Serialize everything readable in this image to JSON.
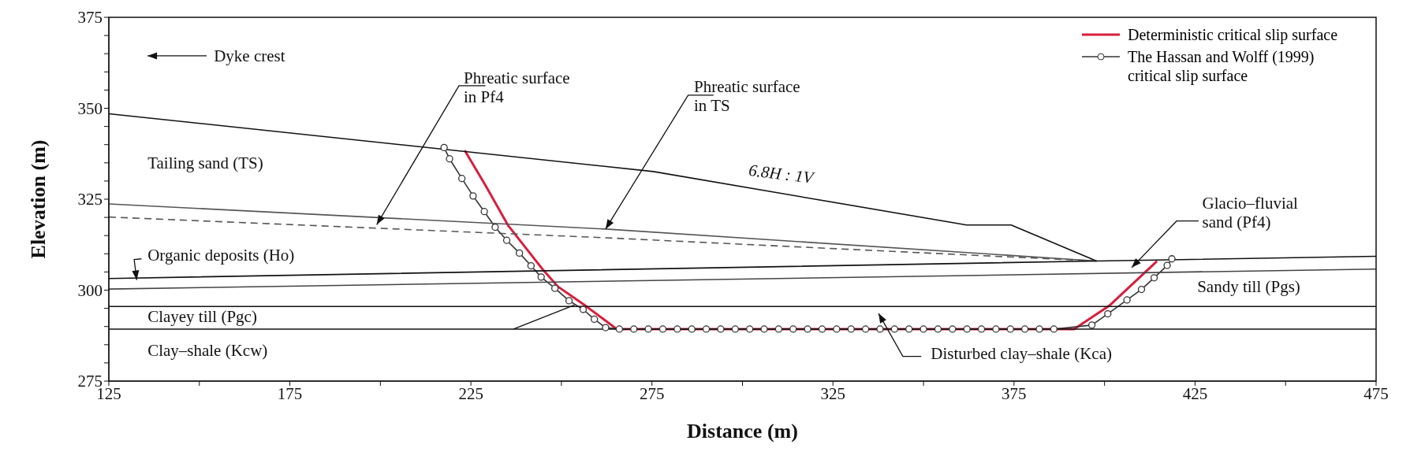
{
  "chart_data": {
    "type": "line",
    "xlabel": "Distance (m)",
    "ylabel": "Elevation (m)",
    "xlim": [
      125,
      475
    ],
    "xticks": [
      125,
      {
        "value": 150,
        "label": null
      },
      175,
      {
        "value": 200,
        "label": null
      },
      225,
      {
        "value": 250,
        "label": null
      },
      275,
      {
        "value": 300,
        "label": null
      },
      325,
      {
        "value": 350,
        "label": null
      },
      375,
      {
        "value": 400,
        "label": null
      },
      425,
      {
        "value": 450,
        "label": null
      },
      475
    ],
    "ylim": [
      275,
      375
    ],
    "yticks": [
      275,
      {
        "value": 280,
        "label": null
      },
      {
        "value": 285,
        "label": null
      },
      {
        "value": 290,
        "label": null
      },
      {
        "value": 295,
        "label": null
      },
      300,
      {
        "value": 305,
        "label": null
      },
      {
        "value": 310,
        "label": null
      },
      {
        "value": 315,
        "label": null
      },
      {
        "value": 320,
        "label": null
      },
      325,
      {
        "value": 330,
        "label": null
      },
      {
        "value": 335,
        "label": null
      },
      {
        "value": 340,
        "label": null
      },
      {
        "value": 345,
        "label": null
      },
      350,
      {
        "value": 355,
        "label": null
      },
      {
        "value": 360,
        "label": null
      },
      {
        "value": 365,
        "label": null
      },
      {
        "value": 370,
        "label": null
      },
      375
    ],
    "grid": false,
    "legend": "top right",
    "series": [
      {
        "name": "Deterministic critical slip surface",
        "color": "#d81e3c",
        "line_style": "solid",
        "marker": "none",
        "x": [
          223.3,
          229.1,
          235.2,
          245,
          249,
          256.8,
          265.3,
          391.6,
          401.3,
          414.5
        ],
        "values": [
          338.4,
          328.7,
          317.9,
          305.5,
          301,
          295.6,
          289.3,
          289.3,
          295.7,
          308
        ]
      },
      {
        "name": "The Hassan and Wolff (1999) critical slip surface",
        "color": "#333333",
        "line_style": "solid",
        "marker": "circle",
        "x": [
          217.6,
          219.1,
          222.5,
          225.6,
          228.7,
          231.7,
          234.9,
          238.4,
          241.6,
          244.4,
          248.2,
          252.1,
          256,
          259.1,
          262.2,
          266,
          270,
          274,
          278,
          282,
          286,
          290,
          294,
          298,
          302,
          306,
          310,
          314,
          318,
          322,
          326,
          330,
          334,
          338,
          342,
          346,
          350,
          354,
          358,
          362,
          366,
          370,
          374,
          378,
          382,
          386,
          396.5,
          400.9,
          406.2,
          410.2,
          413.7,
          417.3,
          418.6
        ],
        "values": [
          339.2,
          336.1,
          330.7,
          325.9,
          321.6,
          317.3,
          313.7,
          310.2,
          306.7,
          303.6,
          300.5,
          297.1,
          294.7,
          292,
          289.7,
          289.3,
          289.3,
          289.3,
          289.3,
          289.3,
          289.3,
          289.3,
          289.3,
          289.3,
          289.3,
          289.3,
          289.3,
          289.3,
          289.3,
          289.3,
          289.3,
          289.3,
          289.3,
          289.3,
          289.3,
          289.3,
          289.3,
          289.3,
          289.3,
          289.3,
          289.3,
          289.3,
          289.3,
          289.3,
          289.3,
          289.3,
          290.4,
          293.5,
          297.3,
          300.2,
          303.4,
          306.8,
          308.6
        ]
      },
      {
        "color": "#111111",
        "line_style": "solid",
        "marker": "none",
        "x": [
          125,
          275.4,
          361.9,
          374.2,
          397.8
        ],
        "values": [
          348.5,
          332.6,
          317.9,
          317.9,
          308
        ]
      },
      {
        "color": "#555555",
        "line_style": "solid",
        "marker": "none",
        "x": [
          125,
          262.2,
          397.8
        ],
        "values": [
          323.7,
          316.8,
          308
        ]
      },
      {
        "color": "#555555",
        "line_style": "dashed",
        "marker": "none",
        "x": [
          125,
          262.2,
          397.8
        ],
        "values": [
          320.1,
          314.4,
          308
        ]
      },
      {
        "color": "#111111",
        "line_style": "solid",
        "marker": "none",
        "x": [
          125,
          397.8,
          475
        ],
        "values": [
          303.2,
          308,
          309.3
        ]
      },
      {
        "color": "#444444",
        "line_style": "solid",
        "marker": "none",
        "x": [
          125,
          475
        ],
        "values": [
          300.3,
          305.8
        ]
      },
      {
        "color": "#111111",
        "line_style": "solid",
        "marker": "none",
        "x": [
          125,
          475
        ],
        "values": [
          295.5,
          295.5
        ]
      },
      {
        "color": "#111111",
        "line_style": "solid",
        "marker": "none",
        "x": [
          125,
          475
        ],
        "values": [
          289.3,
          289.3
        ]
      }
    ],
    "annotations": [
      "Dyke crest",
      {
        "text": "Phreatic surface in Pf4",
        "x": 199,
        "y": 318
      },
      {
        "text": "Phreatic surface in TS",
        "x": 262.2,
        "y": 316.8
      },
      "6.8H : 1V",
      "Tailing sand (TS)",
      {
        "text": "Organic deposits (Ho)",
        "x": 132.7,
        "y": 302.8
      },
      "Clayey till (Pgc)",
      "Clay–shale (Kcw)",
      "Glacio–fluvial sand (Pf4)",
      "Sandy till (Pgs)",
      "Disturbed clay–shale (Kca)"
    ]
  }
}
